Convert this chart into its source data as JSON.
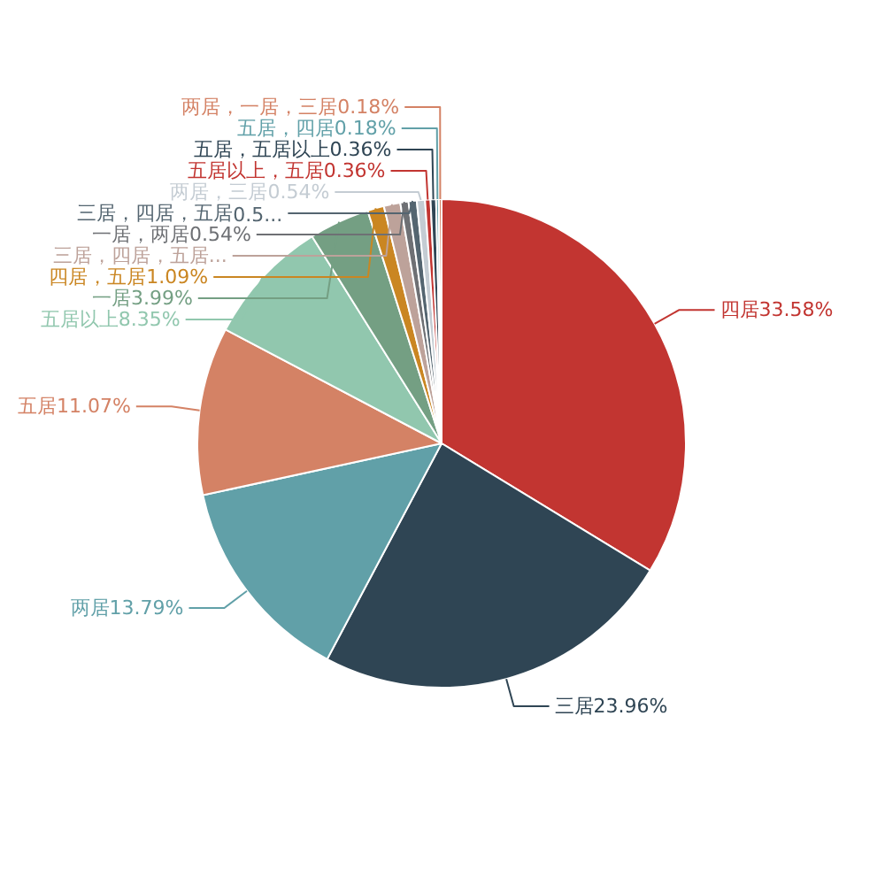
{
  "chart_data": {
    "type": "pie",
    "categories": [
      "四居",
      "三居",
      "两居",
      "五居",
      "五居以上",
      "一居",
      "四居，五居",
      "三居，四居，五居...",
      "一居，两居",
      "三居，四居，五居",
      "两居，三居",
      "五居以上，五居",
      "五居，五居以上",
      "五居，四居",
      "两居，一居，三居"
    ],
    "values": [
      33.58,
      23.96,
      13.79,
      11.07,
      8.35,
      3.99,
      1.09,
      1.09,
      0.54,
      0.54,
      0.54,
      0.36,
      0.36,
      0.18,
      0.18
    ],
    "value_labels": [
      "33.58%",
      "23.96%",
      "13.79%",
      "11.07%",
      "8.35%",
      "3.99%",
      "1.09%",
      null,
      "0.54%",
      "0.5...",
      "0.54%",
      "0.36%",
      "0.36%",
      "0.18%",
      "0.18%"
    ],
    "colors": [
      "#c23531",
      "#2f4554",
      "#61a0a8",
      "#d48265",
      "#91c7ae",
      "#749f83",
      "#ca8622",
      "#bda29a",
      "#6e7074",
      "#546570",
      "#c4ccd3",
      "#c23531",
      "#2f4554",
      "#61a0a8",
      "#d48265"
    ]
  }
}
